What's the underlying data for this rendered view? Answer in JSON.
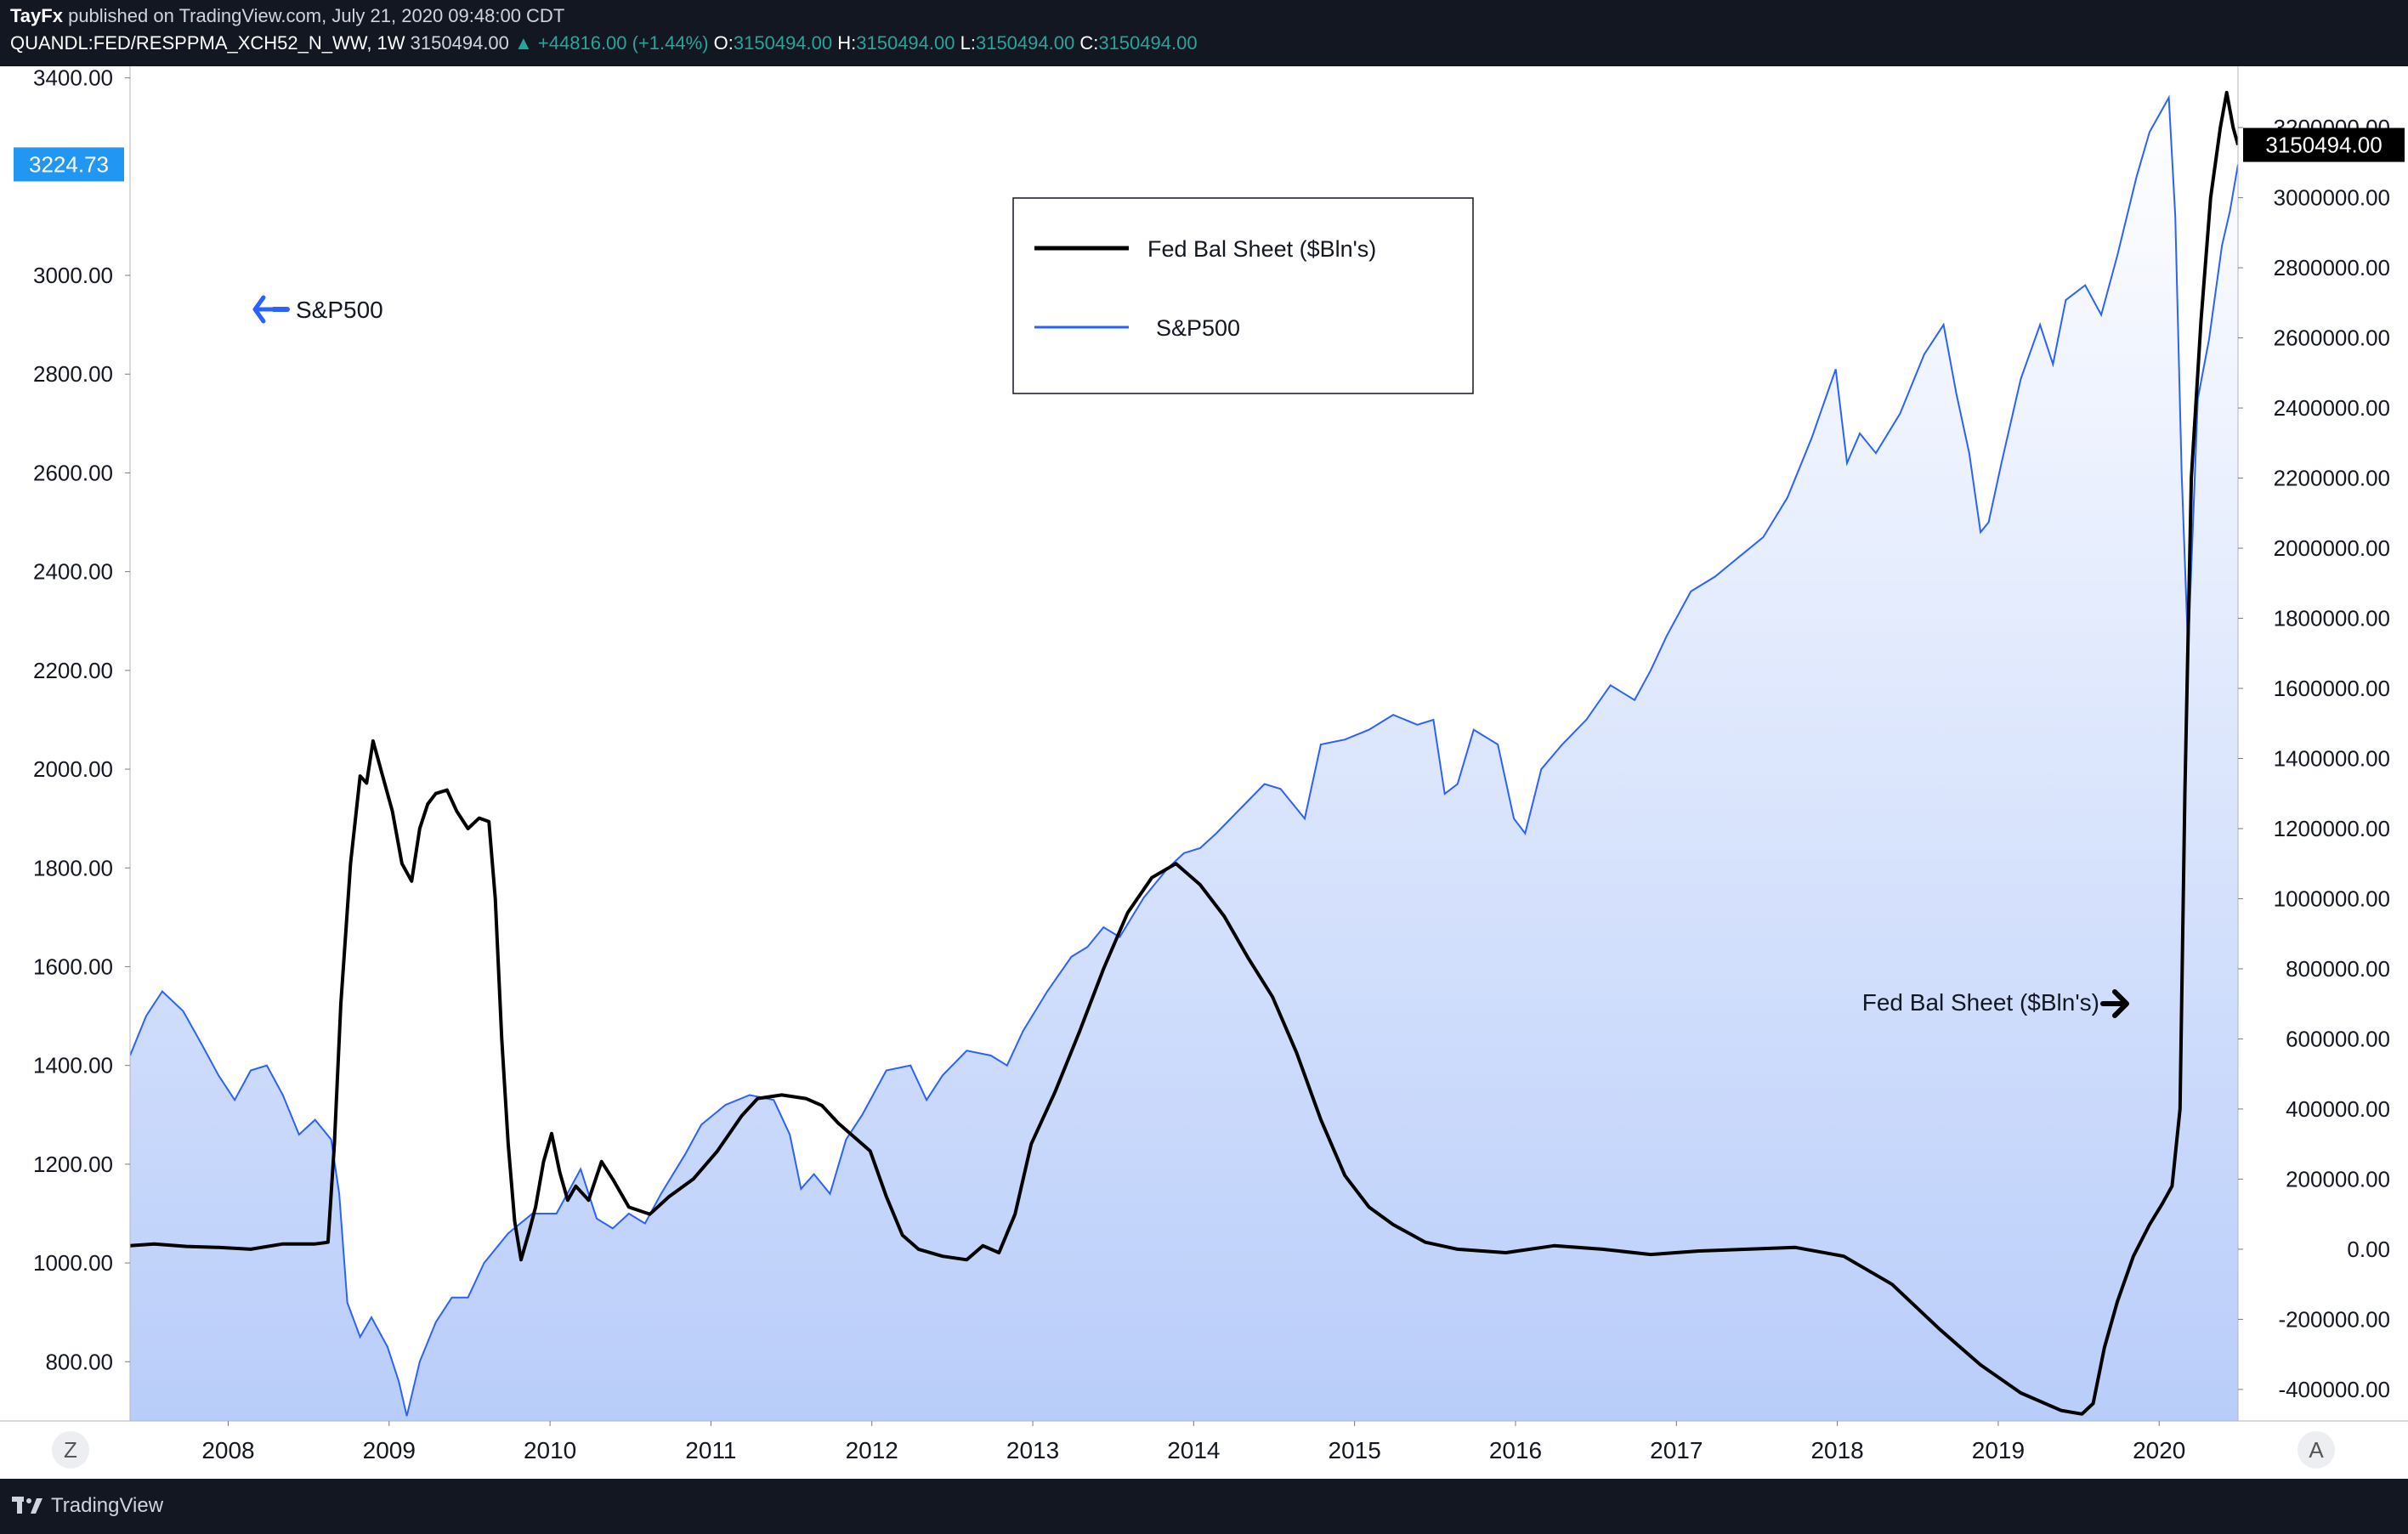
{
  "header": {
    "author": "TayFx",
    "published_text": "published on TradingView.com, July 21, 2020 09:48:00 CDT",
    "symbol": "QUANDL:FED/RESPPMA_XCH52_N_WW, 1W",
    "last": "3150494.00",
    "change": "▲ +44816.00 (+1.44%)",
    "o_label": "O:",
    "o_value": "3150494.00",
    "h_label": "H:",
    "h_value": "3150494.00",
    "l_label": "L:",
    "l_value": "3150494.00",
    "c_label": "C:",
    "c_value": "3150494.00"
  },
  "footer": {
    "brand": "TradingView",
    "left_button": "Z",
    "right_button": "A"
  },
  "colors": {
    "background": "#131722",
    "sp500": "#2962ff",
    "fed": "#000000",
    "accent": "#2196f3",
    "up": "#26a69a"
  },
  "icons": {
    "logo": "tradingview-logo-icon",
    "left_arrow": "arrow-left-icon",
    "right_arrow": "arrow-right-icon"
  },
  "chart_data": {
    "type": "line",
    "title": "",
    "legend_position": "top-center",
    "legend": [
      {
        "label": "Fed Bal Sheet ($Bln's)",
        "color": "#000000"
      },
      {
        "label": "S&P500",
        "color": "#2962ff"
      }
    ],
    "annotations": {
      "sp500": "S&P500",
      "fed": "Fed Bal Sheet ($Bln's)"
    },
    "x_ticks": [
      "2008",
      "2009",
      "2010",
      "2011",
      "2012",
      "2013",
      "2014",
      "2015",
      "2016",
      "2017",
      "2018",
      "2019",
      "2020"
    ],
    "x_range": [
      2007.45,
      2020.55
    ],
    "left_axis": {
      "ticks": [
        "3400.00",
        "3000.00",
        "2800.00",
        "2600.00",
        "2400.00",
        "2200.00",
        "2000.00",
        "1800.00",
        "1600.00",
        "1400.00",
        "1200.00",
        "1000.00",
        "800.00"
      ],
      "range": [
        680,
        3420
      ],
      "current_label": "3224.73",
      "current_value": 3224.73
    },
    "right_axis": {
      "ticks": [
        "3200000.00",
        "3000000.00",
        "2800000.00",
        "2600000.00",
        "2400000.00",
        "2200000.00",
        "2000000.00",
        "1800000.00",
        "1600000.00",
        "1400000.00",
        "1200000.00",
        "1000000.00",
        "800000.00",
        "600000.00",
        "400000.00",
        "200000.00",
        "0.00",
        "-200000.00",
        "-400000.00"
      ],
      "range": [
        -490000,
        3370000
      ],
      "current_label": "3150494.00",
      "current_value": 3150494
    },
    "series": [
      {
        "name": "S&P500",
        "axis": "left",
        "points": [
          [
            2007.45,
            1420
          ],
          [
            2007.55,
            1500
          ],
          [
            2007.65,
            1550
          ],
          [
            2007.78,
            1510
          ],
          [
            2007.9,
            1440
          ],
          [
            2008.0,
            1380
          ],
          [
            2008.1,
            1330
          ],
          [
            2008.2,
            1390
          ],
          [
            2008.3,
            1400
          ],
          [
            2008.4,
            1340
          ],
          [
            2008.5,
            1260
          ],
          [
            2008.6,
            1290
          ],
          [
            2008.7,
            1250
          ],
          [
            2008.75,
            1140
          ],
          [
            2008.8,
            920
          ],
          [
            2008.88,
            850
          ],
          [
            2008.95,
            890
          ],
          [
            2009.05,
            830
          ],
          [
            2009.12,
            760
          ],
          [
            2009.17,
            690
          ],
          [
            2009.25,
            800
          ],
          [
            2009.35,
            880
          ],
          [
            2009.45,
            930
          ],
          [
            2009.55,
            930
          ],
          [
            2009.65,
            1000
          ],
          [
            2009.8,
            1060
          ],
          [
            2009.95,
            1100
          ],
          [
            2010.1,
            1100
          ],
          [
            2010.25,
            1190
          ],
          [
            2010.35,
            1090
          ],
          [
            2010.45,
            1070
          ],
          [
            2010.55,
            1100
          ],
          [
            2010.65,
            1080
          ],
          [
            2010.75,
            1140
          ],
          [
            2010.9,
            1220
          ],
          [
            2011.0,
            1280
          ],
          [
            2011.15,
            1320
          ],
          [
            2011.3,
            1340
          ],
          [
            2011.45,
            1330
          ],
          [
            2011.55,
            1260
          ],
          [
            2011.62,
            1150
          ],
          [
            2011.7,
            1180
          ],
          [
            2011.8,
            1140
          ],
          [
            2011.9,
            1250
          ],
          [
            2012.0,
            1300
          ],
          [
            2012.15,
            1390
          ],
          [
            2012.3,
            1400
          ],
          [
            2012.4,
            1330
          ],
          [
            2012.5,
            1380
          ],
          [
            2012.65,
            1430
          ],
          [
            2012.8,
            1420
          ],
          [
            2012.9,
            1400
          ],
          [
            2013.0,
            1470
          ],
          [
            2013.15,
            1550
          ],
          [
            2013.3,
            1620
          ],
          [
            2013.4,
            1640
          ],
          [
            2013.5,
            1680
          ],
          [
            2013.6,
            1660
          ],
          [
            2013.75,
            1740
          ],
          [
            2013.9,
            1800
          ],
          [
            2014.0,
            1830
          ],
          [
            2014.1,
            1840
          ],
          [
            2014.2,
            1870
          ],
          [
            2014.35,
            1920
          ],
          [
            2014.5,
            1970
          ],
          [
            2014.6,
            1960
          ],
          [
            2014.75,
            1900
          ],
          [
            2014.85,
            2050
          ],
          [
            2015.0,
            2060
          ],
          [
            2015.15,
            2080
          ],
          [
            2015.3,
            2110
          ],
          [
            2015.45,
            2090
          ],
          [
            2015.55,
            2100
          ],
          [
            2015.62,
            1950
          ],
          [
            2015.7,
            1970
          ],
          [
            2015.8,
            2080
          ],
          [
            2015.95,
            2050
          ],
          [
            2016.05,
            1900
          ],
          [
            2016.12,
            1870
          ],
          [
            2016.22,
            2000
          ],
          [
            2016.35,
            2050
          ],
          [
            2016.5,
            2100
          ],
          [
            2016.65,
            2170
          ],
          [
            2016.8,
            2140
          ],
          [
            2016.9,
            2200
          ],
          [
            2017.0,
            2270
          ],
          [
            2017.15,
            2360
          ],
          [
            2017.3,
            2390
          ],
          [
            2017.45,
            2430
          ],
          [
            2017.6,
            2470
          ],
          [
            2017.75,
            2550
          ],
          [
            2017.9,
            2670
          ],
          [
            2018.05,
            2810
          ],
          [
            2018.12,
            2620
          ],
          [
            2018.2,
            2680
          ],
          [
            2018.3,
            2640
          ],
          [
            2018.45,
            2720
          ],
          [
            2018.6,
            2840
          ],
          [
            2018.72,
            2900
          ],
          [
            2018.8,
            2760
          ],
          [
            2018.88,
            2640
          ],
          [
            2018.95,
            2480
          ],
          [
            2019.0,
            2500
          ],
          [
            2019.08,
            2620
          ],
          [
            2019.2,
            2790
          ],
          [
            2019.32,
            2900
          ],
          [
            2019.4,
            2820
          ],
          [
            2019.48,
            2950
          ],
          [
            2019.6,
            2980
          ],
          [
            2019.7,
            2920
          ],
          [
            2019.8,
            3040
          ],
          [
            2019.92,
            3200
          ],
          [
            2020.0,
            3290
          ],
          [
            2020.12,
            3360
          ],
          [
            2020.16,
            3120
          ],
          [
            2020.2,
            2600
          ],
          [
            2020.24,
            2240
          ],
          [
            2020.3,
            2750
          ],
          [
            2020.37,
            2870
          ],
          [
            2020.45,
            3060
          ],
          [
            2020.5,
            3130
          ],
          [
            2020.55,
            3224.73
          ]
        ]
      },
      {
        "name": "Fed Bal Sheet ($Bln's)",
        "axis": "right",
        "points": [
          [
            2007.45,
            10000
          ],
          [
            2007.6,
            15000
          ],
          [
            2007.8,
            8000
          ],
          [
            2008.0,
            5000
          ],
          [
            2008.2,
            0
          ],
          [
            2008.4,
            15000
          ],
          [
            2008.6,
            15000
          ],
          [
            2008.68,
            20000
          ],
          [
            2008.72,
            300000
          ],
          [
            2008.76,
            700000
          ],
          [
            2008.82,
            1100000
          ],
          [
            2008.88,
            1350000
          ],
          [
            2008.92,
            1330000
          ],
          [
            2008.96,
            1450000
          ],
          [
            2009.02,
            1350000
          ],
          [
            2009.08,
            1250000
          ],
          [
            2009.14,
            1100000
          ],
          [
            2009.2,
            1050000
          ],
          [
            2009.25,
            1200000
          ],
          [
            2009.3,
            1270000
          ],
          [
            2009.35,
            1300000
          ],
          [
            2009.42,
            1310000
          ],
          [
            2009.48,
            1250000
          ],
          [
            2009.55,
            1200000
          ],
          [
            2009.62,
            1230000
          ],
          [
            2009.68,
            1220000
          ],
          [
            2009.72,
            1000000
          ],
          [
            2009.76,
            600000
          ],
          [
            2009.8,
            300000
          ],
          [
            2009.84,
            80000
          ],
          [
            2009.88,
            -30000
          ],
          [
            2009.93,
            50000
          ],
          [
            2009.97,
            120000
          ],
          [
            2010.02,
            250000
          ],
          [
            2010.07,
            330000
          ],
          [
            2010.12,
            220000
          ],
          [
            2010.17,
            140000
          ],
          [
            2010.22,
            180000
          ],
          [
            2010.3,
            140000
          ],
          [
            2010.38,
            250000
          ],
          [
            2010.45,
            200000
          ],
          [
            2010.55,
            120000
          ],
          [
            2010.68,
            100000
          ],
          [
            2010.8,
            150000
          ],
          [
            2010.95,
            200000
          ],
          [
            2011.1,
            280000
          ],
          [
            2011.25,
            380000
          ],
          [
            2011.35,
            430000
          ],
          [
            2011.5,
            440000
          ],
          [
            2011.65,
            430000
          ],
          [
            2011.75,
            410000
          ],
          [
            2011.85,
            360000
          ],
          [
            2011.95,
            320000
          ],
          [
            2012.05,
            280000
          ],
          [
            2012.15,
            150000
          ],
          [
            2012.25,
            40000
          ],
          [
            2012.35,
            0
          ],
          [
            2012.5,
            -20000
          ],
          [
            2012.65,
            -30000
          ],
          [
            2012.75,
            10000
          ],
          [
            2012.85,
            -10000
          ],
          [
            2012.95,
            100000
          ],
          [
            2013.05,
            300000
          ],
          [
            2013.2,
            450000
          ],
          [
            2013.35,
            620000
          ],
          [
            2013.5,
            800000
          ],
          [
            2013.65,
            960000
          ],
          [
            2013.8,
            1060000
          ],
          [
            2013.95,
            1100000
          ],
          [
            2014.1,
            1040000
          ],
          [
            2014.25,
            950000
          ],
          [
            2014.4,
            830000
          ],
          [
            2014.55,
            720000
          ],
          [
            2014.7,
            560000
          ],
          [
            2014.85,
            370000
          ],
          [
            2015.0,
            210000
          ],
          [
            2015.15,
            120000
          ],
          [
            2015.3,
            70000
          ],
          [
            2015.5,
            20000
          ],
          [
            2015.7,
            0
          ],
          [
            2016.0,
            -10000
          ],
          [
            2016.3,
            10000
          ],
          [
            2016.6,
            0
          ],
          [
            2016.9,
            -15000
          ],
          [
            2017.2,
            -5000
          ],
          [
            2017.5,
            0
          ],
          [
            2017.8,
            5000
          ],
          [
            2018.1,
            -20000
          ],
          [
            2018.4,
            -100000
          ],
          [
            2018.7,
            -230000
          ],
          [
            2018.95,
            -330000
          ],
          [
            2019.2,
            -410000
          ],
          [
            2019.45,
            -460000
          ],
          [
            2019.58,
            -470000
          ],
          [
            2019.65,
            -440000
          ],
          [
            2019.72,
            -280000
          ],
          [
            2019.8,
            -150000
          ],
          [
            2019.9,
            -20000
          ],
          [
            2020.0,
            70000
          ],
          [
            2020.08,
            130000
          ],
          [
            2020.14,
            180000
          ],
          [
            2020.19,
            400000
          ],
          [
            2020.22,
            1300000
          ],
          [
            2020.26,
            2200000
          ],
          [
            2020.32,
            2650000
          ],
          [
            2020.38,
            3000000
          ],
          [
            2020.44,
            3200000
          ],
          [
            2020.48,
            3300000
          ],
          [
            2020.52,
            3200000
          ],
          [
            2020.55,
            3150494
          ]
        ]
      }
    ]
  }
}
